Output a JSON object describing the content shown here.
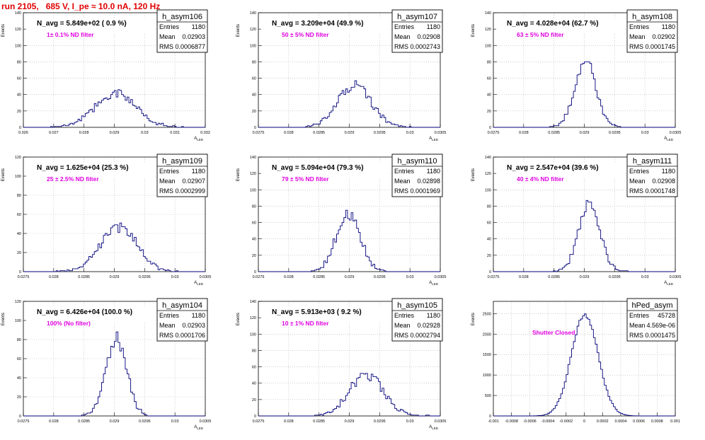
{
  "run_title": "run 2105,   685 V, I_pe ≈ 10.0 nA, 120 Hz",
  "colors": {
    "title": "#e00000",
    "hist": "#00007a",
    "annotation": "#e000e0",
    "grid": "#b0b0b0",
    "frame": "#000000"
  },
  "stats_labels": {
    "entries": "Entries",
    "mean": "Mean",
    "rms": "RMS"
  },
  "chart_data": [
    {
      "type": "bar",
      "name": "h_asym106",
      "navg": "N_avg = 5.849e+02 ( 0.9 %)",
      "filter": "1± 0.1% ND filter",
      "stats": {
        "entries": "1180",
        "mean": "0.02903",
        "rms": "0.0006877"
      },
      "ylabel": "Events",
      "xlabel": "A_LED",
      "xlim": [
        0.026,
        0.032
      ],
      "ylim": [
        0,
        140
      ],
      "xticks": [
        0.026,
        0.027,
        0.028,
        0.029,
        0.03,
        0.031,
        0.032
      ],
      "xticklabels": [
        "0.026",
        "0.027",
        "0.028",
        "0.029",
        "0.03",
        "0.031",
        "0.032"
      ],
      "yticks": [
        0,
        20,
        40,
        60,
        80,
        100,
        120,
        140
      ],
      "yticklabels": [
        "0",
        "20",
        "40",
        "60",
        "80",
        "100",
        "120",
        "140"
      ],
      "dist": {
        "mean": 0.02903,
        "rms": 0.0006877,
        "n": 1180,
        "bins": 100,
        "lo": 0.026,
        "hi": 0.032,
        "seed": 106
      }
    },
    {
      "type": "bar",
      "name": "h_asym107",
      "navg": "N_avg = 3.209e+04 (49.9 %)",
      "filter": "50 ± 5% ND filter",
      "stats": {
        "entries": "1180",
        "mean": "0.02908",
        "rms": "0.0002743"
      },
      "ylabel": "Events",
      "xlabel": "A_LED",
      "xlim": [
        0.0275,
        0.0305
      ],
      "ylim": [
        0,
        140
      ],
      "xticks": [
        0.0275,
        0.028,
        0.0285,
        0.029,
        0.0295,
        0.03,
        0.0305
      ],
      "xticklabels": [
        "0.0275",
        "0.028",
        "0.0285",
        "0.029",
        "0.0295",
        "0.03",
        "0.0305"
      ],
      "yticks": [
        0,
        20,
        40,
        60,
        80,
        100,
        120,
        140
      ],
      "yticklabels": [
        "0",
        "20",
        "40",
        "60",
        "80",
        "100",
        "120",
        "140"
      ],
      "dist": {
        "mean": 0.02908,
        "rms": 0.0002743,
        "n": 1180,
        "bins": 100,
        "lo": 0.0275,
        "hi": 0.0305,
        "seed": 107
      }
    },
    {
      "type": "bar",
      "name": "h_asym108",
      "navg": "N_avg = 4.028e+04 (62.7 %)",
      "filter": "63 ± 5% ND filter",
      "stats": {
        "entries": "1180",
        "mean": "0.02902",
        "rms": "0.0001745"
      },
      "ylabel": "Events",
      "xlabel": "A_LED",
      "xlim": [
        0.0275,
        0.0305
      ],
      "ylim": [
        0,
        140
      ],
      "xticks": [
        0.0275,
        0.028,
        0.0285,
        0.029,
        0.0295,
        0.03,
        0.0305
      ],
      "xticklabels": [
        "0.0275",
        "0.028",
        "0.0285",
        "0.029",
        "0.0295",
        "0.03",
        "0.0305"
      ],
      "yticks": [
        0,
        20,
        40,
        60,
        80,
        100,
        120,
        140
      ],
      "yticklabels": [
        "0",
        "20",
        "40",
        "60",
        "80",
        "100",
        "120",
        "140"
      ],
      "dist": {
        "mean": 0.02902,
        "rms": 0.0001745,
        "n": 1180,
        "bins": 100,
        "lo": 0.0275,
        "hi": 0.0305,
        "seed": 108
      }
    },
    {
      "type": "bar",
      "name": "h_asym109",
      "navg": "N_avg = 1.625e+04 (25.3 %)",
      "filter": "25 ± 2.5% ND filter",
      "stats": {
        "entries": "1180",
        "mean": "0.02907",
        "rms": "0.0002999"
      },
      "ylabel": "Events",
      "xlabel": "A_LED",
      "xlim": [
        0.0275,
        0.0305
      ],
      "ylim": [
        0,
        120
      ],
      "xticks": [
        0.0275,
        0.028,
        0.0285,
        0.029,
        0.0295,
        0.03,
        0.0305
      ],
      "xticklabels": [
        "0.0275",
        "0.028",
        "0.0285",
        "0.029",
        "0.0295",
        "0.03",
        "0.0305"
      ],
      "yticks": [
        0,
        20,
        40,
        60,
        80,
        100,
        120
      ],
      "yticklabels": [
        "0",
        "20",
        "40",
        "60",
        "80",
        "100",
        "120"
      ],
      "dist": {
        "mean": 0.02907,
        "rms": 0.0002999,
        "n": 1180,
        "bins": 100,
        "lo": 0.0275,
        "hi": 0.0305,
        "seed": 109
      }
    },
    {
      "type": "bar",
      "name": "h_asym110",
      "navg": "N_avg = 5.094e+04 (79.3 %)",
      "filter": "79 ± 5% ND filter",
      "stats": {
        "entries": "1180",
        "mean": "0.02898",
        "rms": "0.0001969"
      },
      "ylabel": "Events",
      "xlabel": "A_LED",
      "xlim": [
        0.0275,
        0.0305
      ],
      "ylim": [
        0,
        140
      ],
      "xticks": [
        0.0275,
        0.028,
        0.0285,
        0.029,
        0.0295,
        0.03,
        0.0305
      ],
      "xticklabels": [
        "0.0275",
        "0.028",
        "0.0285",
        "0.029",
        "0.0295",
        "0.03",
        "0.0305"
      ],
      "yticks": [
        0,
        20,
        40,
        60,
        80,
        100,
        120,
        140
      ],
      "yticklabels": [
        "0",
        "20",
        "40",
        "60",
        "80",
        "100",
        "120",
        "140"
      ],
      "dist": {
        "mean": 0.02898,
        "rms": 0.0001969,
        "n": 1180,
        "bins": 100,
        "lo": 0.0275,
        "hi": 0.0305,
        "seed": 110
      }
    },
    {
      "type": "bar",
      "name": "h_asym111",
      "navg": "N_avg = 2.547e+04 (39.6 %)",
      "filter": "40 ± 4% ND filter",
      "stats": {
        "entries": "1180",
        "mean": "0.02908",
        "rms": "0.0001748"
      },
      "ylabel": "Events",
      "xlabel": "A_LED",
      "xlim": [
        0.0275,
        0.0305
      ],
      "ylim": [
        0,
        140
      ],
      "xticks": [
        0.0275,
        0.028,
        0.0285,
        0.029,
        0.0295,
        0.03,
        0.0305
      ],
      "xticklabels": [
        "0.0275",
        "0.028",
        "0.0285",
        "0.029",
        "0.0295",
        "0.03",
        "0.0305"
      ],
      "yticks": [
        0,
        20,
        40,
        60,
        80,
        100,
        120,
        140
      ],
      "yticklabels": [
        "0",
        "20",
        "40",
        "60",
        "80",
        "100",
        "120",
        "140"
      ],
      "dist": {
        "mean": 0.02908,
        "rms": 0.0001748,
        "n": 1180,
        "bins": 100,
        "lo": 0.0275,
        "hi": 0.0305,
        "seed": 111
      }
    },
    {
      "type": "bar",
      "name": "h_asym104",
      "navg": "N_avg = 6.426e+04 (100.0 %)",
      "filter": "100% (No filter)",
      "stats": {
        "entries": "1180",
        "mean": "0.02903",
        "rms": "0.0001706"
      },
      "ylabel": "Events",
      "xlabel": "A_LED",
      "xlim": [
        0.0275,
        0.0305
      ],
      "ylim": [
        0,
        120
      ],
      "xticks": [
        0.0275,
        0.028,
        0.0285,
        0.029,
        0.0295,
        0.03,
        0.0305
      ],
      "xticklabels": [
        "0.0275",
        "0.028",
        "0.0285",
        "0.029",
        "0.0295",
        "0.03",
        "0.0305"
      ],
      "yticks": [
        0,
        20,
        40,
        60,
        80,
        100,
        120
      ],
      "yticklabels": [
        "0",
        "20",
        "40",
        "60",
        "80",
        "100",
        "120"
      ],
      "dist": {
        "mean": 0.02903,
        "rms": 0.0001706,
        "n": 1180,
        "bins": 100,
        "lo": 0.0275,
        "hi": 0.0305,
        "seed": 104
      }
    },
    {
      "type": "bar",
      "name": "h_asym105",
      "navg": "N_avg = 5.913e+03 ( 9.2 %)",
      "filter": "10 ± 1% ND filter",
      "stats": {
        "entries": "1180",
        "mean": "0.02928",
        "rms": "0.0002794"
      },
      "ylabel": "Events",
      "xlabel": "A_LED",
      "xlim": [
        0.0275,
        0.0305
      ],
      "ylim": [
        0,
        140
      ],
      "xticks": [
        0.0275,
        0.028,
        0.0285,
        0.029,
        0.0295,
        0.03,
        0.0305
      ],
      "xticklabels": [
        "0.0275",
        "0.028",
        "0.0285",
        "0.029",
        "0.0295",
        "0.03",
        "0.0305"
      ],
      "yticks": [
        0,
        20,
        40,
        60,
        80,
        100,
        120,
        140
      ],
      "yticklabels": [
        "0",
        "20",
        "40",
        "60",
        "80",
        "100",
        "120",
        "140"
      ],
      "dist": {
        "mean": 0.02928,
        "rms": 0.0002794,
        "n": 1180,
        "bins": 100,
        "lo": 0.0275,
        "hi": 0.0305,
        "seed": 105
      }
    },
    {
      "type": "bar",
      "name": "hPed_asym",
      "navg": "",
      "filter": "Shutter Closed",
      "stats": {
        "entries": "45728",
        "mean": "4.569e-06",
        "rms": "0.0001475"
      },
      "ylabel": "Events",
      "xlabel": "",
      "xlim": [
        -0.001,
        0.001
      ],
      "ylim": [
        0,
        2800
      ],
      "xticks": [
        -0.001,
        -0.0008,
        -0.0006,
        -0.0004,
        -0.0002,
        0,
        0.0002,
        0.0004,
        0.0006,
        0.0008,
        0.001
      ],
      "xticklabels": [
        "-0.001",
        "-0.0008",
        "-0.0006",
        "-0.0004",
        "-0.0002",
        "0",
        "0.0002",
        "0.0004",
        "0.0006",
        "0.0008",
        "0.001"
      ],
      "yticks": [
        0,
        500,
        1000,
        1500,
        2000,
        2500
      ],
      "yticklabels": [
        "0",
        "500",
        "1000",
        "1500",
        "2000",
        "2500"
      ],
      "dist": {
        "mean": 4.569e-06,
        "rms": 0.0001475,
        "n": 45728,
        "bins": 100,
        "lo": -0.001,
        "hi": 0.001,
        "seed": 99
      }
    }
  ]
}
